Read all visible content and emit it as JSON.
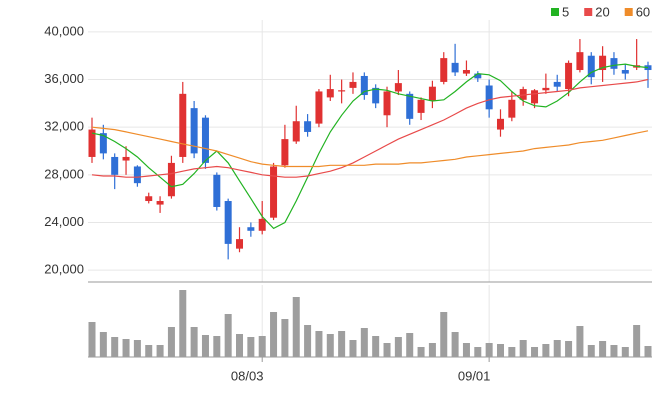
{
  "chart_data": {
    "type": "candlestick",
    "categories": [
      null,
      null,
      null,
      null,
      null,
      null,
      null,
      null,
      null,
      null,
      null,
      null,
      null,
      null,
      null,
      "08/03",
      null,
      null,
      null,
      null,
      null,
      null,
      null,
      null,
      null,
      null,
      null,
      null,
      null,
      null,
      null,
      null,
      null,
      null,
      null,
      "09/01",
      null,
      null,
      null,
      null,
      null,
      null,
      null,
      null,
      null,
      null,
      null,
      null,
      null,
      null
    ],
    "open": [
      29500,
      31500,
      29500,
      29200,
      28700,
      25800,
      25500,
      26200,
      29500,
      33600,
      32800,
      28000,
      25800,
      21800,
      23600,
      23300,
      24400,
      28800,
      30800,
      32500,
      32300,
      34500,
      35000,
      35300,
      36300,
      35300,
      33000,
      35000,
      34800,
      33200,
      34200,
      35800,
      37400,
      36500,
      36500,
      35500,
      31800,
      32800,
      34300,
      34000,
      35100,
      35800,
      35200,
      36800,
      38000,
      36800,
      37800,
      36800,
      37000,
      37200
    ],
    "high": [
      32800,
      32200,
      29800,
      30400,
      28800,
      26500,
      26200,
      29600,
      35800,
      34200,
      33000,
      28200,
      26000,
      23600,
      24000,
      25800,
      29000,
      32200,
      33800,
      33100,
      35200,
      36400,
      36000,
      36600,
      36600,
      35600,
      35400,
      36800,
      35000,
      34500,
      35900,
      38300,
      39000,
      37600,
      36700,
      36000,
      33500,
      35000,
      35400,
      35200,
      36500,
      36400,
      37600,
      39400,
      38300,
      38800,
      38300,
      37300,
      39400,
      37500
    ],
    "low": [
      29000,
      29300,
      26800,
      28000,
      27000,
      25600,
      24800,
      26000,
      29000,
      29400,
      28500,
      25000,
      20900,
      21500,
      22800,
      23000,
      24200,
      28600,
      30600,
      31200,
      32000,
      34200,
      34000,
      34800,
      34300,
      33600,
      32000,
      34700,
      32200,
      32600,
      33600,
      35600,
      36300,
      36300,
      35800,
      32800,
      31200,
      32500,
      33800,
      33600,
      34800,
      35000,
      34600,
      36600,
      35600,
      35800,
      36400,
      36000,
      36800,
      35300
    ],
    "close": [
      31800,
      29800,
      28000,
      29500,
      27300,
      26200,
      25800,
      29000,
      34800,
      29800,
      29000,
      25300,
      22200,
      22600,
      23300,
      24300,
      28700,
      31000,
      32500,
      31600,
      35000,
      35200,
      35100,
      35800,
      34700,
      34000,
      35000,
      35700,
      32700,
      34300,
      35400,
      37800,
      36600,
      36800,
      36100,
      33500,
      32700,
      34300,
      35200,
      35100,
      35300,
      35400,
      37400,
      38300,
      36200,
      38000,
      36900,
      36500,
      37200,
      36800
    ],
    "up_color": "#e03131",
    "down_color": "#2f6fd6",
    "ylim": [
      19000,
      41000
    ],
    "yticks": [
      {
        "value": 20000,
        "label": "20,000"
      },
      {
        "value": 24000,
        "label": "24,000"
      },
      {
        "value": 28000,
        "label": "28,000"
      },
      {
        "value": 32000,
        "label": "32,000"
      },
      {
        "value": 36000,
        "label": "36,000"
      },
      {
        "value": 40000,
        "label": "40,000"
      }
    ],
    "grid": true,
    "legend": "top-right",
    "ma": [
      {
        "name": "5",
        "color": "#22b322",
        "values": [
          31500,
          31300,
          30800,
          30200,
          29500,
          28600,
          27800,
          27000,
          27200,
          28100,
          29200,
          30000,
          29000,
          27500,
          26000,
          24500,
          23500,
          24000,
          25800,
          27800,
          29800,
          31600,
          33000,
          34200,
          35000,
          35200,
          35100,
          34800,
          34600,
          34400,
          34200,
          34300,
          35000,
          35800,
          36500,
          36400,
          35900,
          35000,
          34200,
          33800,
          33700,
          34200,
          34900,
          35800,
          36600,
          37000,
          37200,
          37300,
          37100,
          37000
        ]
      },
      {
        "name": "20",
        "color": "#e84a4a",
        "values": [
          28000,
          27900,
          27900,
          27800,
          27800,
          27900,
          28000,
          28100,
          28300,
          28500,
          28600,
          28700,
          28600,
          28400,
          28200,
          28000,
          27900,
          27800,
          27800,
          27900,
          28100,
          28300,
          28600,
          29000,
          29500,
          30000,
          30500,
          31000,
          31400,
          31800,
          32200,
          32600,
          33100,
          33600,
          34000,
          34300,
          34500,
          34600,
          34700,
          34800,
          34900,
          35000,
          35100,
          35300,
          35400,
          35500,
          35600,
          35700,
          35800,
          36000
        ]
      },
      {
        "name": "60",
        "color": "#ef8c2a",
        "values": [
          32000,
          31900,
          31800,
          31600,
          31400,
          31200,
          31000,
          30800,
          30600,
          30400,
          30200,
          30000,
          29700,
          29400,
          29100,
          28900,
          28800,
          28700,
          28700,
          28700,
          28700,
          28800,
          28800,
          28800,
          28800,
          28900,
          28900,
          28900,
          29000,
          29000,
          29100,
          29200,
          29300,
          29500,
          29600,
          29700,
          29800,
          29900,
          30000,
          30200,
          30300,
          30400,
          30500,
          30700,
          30800,
          30900,
          31100,
          31300,
          31500,
          31700
        ]
      }
    ],
    "volume": {
      "color": "#9e9e9e",
      "ylim": [
        0,
        70
      ],
      "values": [
        35,
        25,
        20,
        18,
        17,
        12,
        12,
        30,
        67,
        30,
        22,
        21,
        43,
        23,
        20,
        21,
        45,
        38,
        60,
        32,
        26,
        23,
        26,
        17,
        29,
        21,
        14,
        20,
        24,
        10,
        14,
        45,
        25,
        14,
        10,
        14,
        13,
        10,
        17,
        10,
        13,
        17,
        16,
        31,
        12,
        16,
        12,
        10,
        32,
        11
      ]
    }
  }
}
